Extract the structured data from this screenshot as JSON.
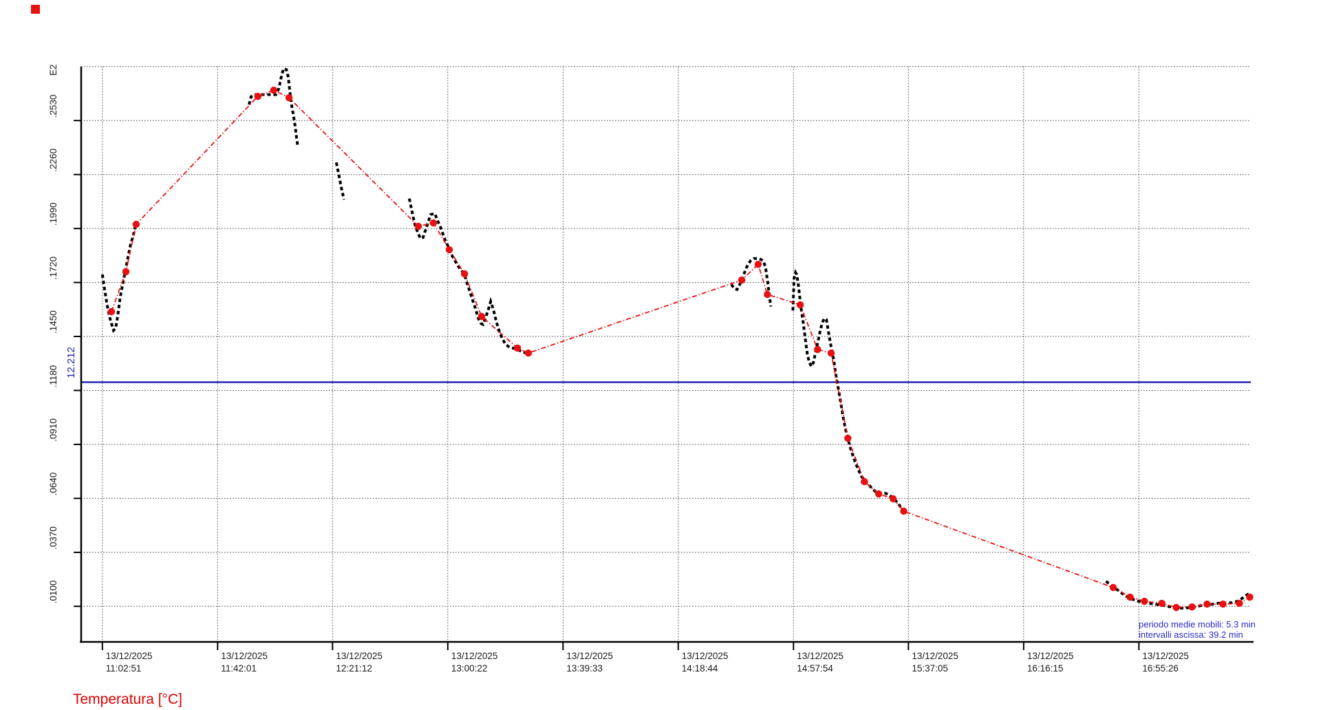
{
  "chart_data": {
    "type": "line",
    "title": "Temperatura [°C]",
    "x_axis_date": "13/12/2025",
    "x_tick_labels": [
      "11:02:51",
      "11:42:01",
      "12:21:12",
      "13:00:22",
      "13:39:33",
      "14:18:44",
      "14:57:54",
      "15:37:05",
      "16:16:15",
      "16:55:26"
    ],
    "x_tick_minutes": [
      0,
      39.2,
      78.3,
      117.5,
      156.7,
      195.9,
      235.1,
      274.2,
      313.4,
      352.6
    ],
    "x_unit": "minutes since 11:02:51",
    "y_exponent_label": "E2",
    "y_tick_labels": [
      ".2530",
      ".2260",
      ".1990",
      ".1720",
      ".1450",
      ".1180",
      ".0910",
      ".0640",
      ".0370",
      ".0100"
    ],
    "y_tick_values": [
      25.3,
      22.6,
      19.9,
      17.2,
      14.5,
      11.8,
      9.1,
      6.4,
      3.7,
      1.0
    ],
    "y_top_gridline_value": 28.0,
    "ylim": [
      -0.78,
      27.96
    ],
    "grid": true,
    "legend_position": "none",
    "reference_line": {
      "label": "12.212",
      "value": 12.212
    },
    "annotations": [
      "periodo medie mobili: 5.3 min",
      "intervalli ascissa: 39.2 min"
    ],
    "colors": {
      "raw_series": "#000000",
      "average_series": "#e81010",
      "reference_line": "#2323b4",
      "title": "#dd0000",
      "annotation": "#2a2ac8",
      "grid": "#3c3c3c",
      "axis": "#000000",
      "legend_marker": "#e81010"
    },
    "series": [
      {
        "name": "temperatura-misurata",
        "style": "dashed-black",
        "segments": [
          [
            [
              0,
              17.6
            ],
            [
              0.7,
              16.9
            ],
            [
              1.7,
              16.0
            ],
            [
              2.6,
              15.4
            ],
            [
              3.8,
              14.8
            ],
            [
              4.5,
              14.9
            ],
            [
              5.2,
              15.5
            ],
            [
              6.1,
              16.5
            ],
            [
              7.3,
              17.4
            ],
            [
              8.5,
              18.3
            ],
            [
              9.6,
              19.1
            ],
            [
              10.6,
              19.6
            ],
            [
              11.3,
              20.1
            ]
          ],
          [
            [
              49.9,
              26.1
            ],
            [
              50.6,
              26.5
            ],
            [
              52.2,
              26.6
            ],
            [
              54.6,
              26.6
            ],
            [
              56.9,
              26.6
            ],
            [
              59.0,
              26.6
            ],
            [
              60.0,
              26.9
            ],
            [
              60.9,
              27.5
            ],
            [
              61.6,
              27.9
            ],
            [
              62.6,
              27.85
            ],
            [
              63.2,
              27.5
            ],
            [
              63.7,
              26.85
            ],
            [
              64.2,
              26.2
            ],
            [
              64.9,
              25.65
            ],
            [
              65.6,
              25.0
            ],
            [
              66.1,
              24.4
            ],
            [
              66.5,
              24.0
            ]
          ],
          [
            [
              79.6,
              23.2
            ],
            [
              80.6,
              22.45
            ],
            [
              81.5,
              21.8
            ],
            [
              82.2,
              21.35
            ]
          ],
          [
            [
              104.4,
              21.4
            ],
            [
              105.4,
              20.7
            ],
            [
              106.3,
              20.1
            ],
            [
              107.3,
              19.7
            ],
            [
              108.2,
              19.4
            ],
            [
              109.1,
              19.45
            ],
            [
              110.1,
              19.9
            ],
            [
              111.0,
              20.3
            ],
            [
              111.7,
              20.6
            ],
            [
              113.1,
              20.65
            ],
            [
              114.0,
              20.3
            ],
            [
              115.2,
              19.9
            ],
            [
              116.4,
              19.4
            ],
            [
              117.6,
              19.0
            ],
            [
              118.7,
              18.6
            ],
            [
              119.9,
              18.3
            ],
            [
              121.1,
              18.0
            ],
            [
              122.2,
              17.8
            ],
            [
              123.2,
              17.6
            ],
            [
              124.1,
              17.15
            ],
            [
              125.0,
              16.75
            ],
            [
              126.0,
              16.3
            ],
            [
              126.9,
              15.9
            ],
            [
              127.9,
              15.4
            ],
            [
              128.8,
              15.15
            ],
            [
              129.5,
              15.1
            ],
            [
              130.4,
              15.45
            ],
            [
              131.4,
              15.9
            ],
            [
              132.1,
              16.25
            ],
            [
              133.0,
              15.85
            ],
            [
              133.9,
              15.3
            ],
            [
              134.9,
              14.8
            ],
            [
              136.0,
              14.4
            ],
            [
              137.2,
              14.1
            ],
            [
              138.6,
              13.95
            ],
            [
              140.3,
              13.9
            ],
            [
              141.9,
              13.8
            ],
            [
              143.5,
              13.7
            ],
            [
              145.2,
              13.65
            ]
          ],
          [
            [
              214.0,
              17.1
            ],
            [
              214.9,
              16.9
            ],
            [
              215.9,
              16.85
            ],
            [
              216.8,
              17.1
            ],
            [
              217.7,
              17.4
            ],
            [
              218.7,
              17.8
            ],
            [
              219.6,
              18.1
            ],
            [
              220.6,
              18.3
            ],
            [
              221.7,
              18.4
            ],
            [
              222.9,
              18.4
            ],
            [
              224.1,
              18.35
            ],
            [
              225.0,
              18.25
            ],
            [
              225.7,
              17.85
            ],
            [
              226.4,
              17.15
            ],
            [
              226.9,
              16.5
            ],
            [
              227.4,
              16.0
            ]
          ],
          [
            [
              234.9,
              15.8
            ],
            [
              235.1,
              16.6
            ],
            [
              235.3,
              17.4
            ],
            [
              235.8,
              17.7
            ],
            [
              236.2,
              17.6
            ],
            [
              236.7,
              17.15
            ],
            [
              237.2,
              16.5
            ],
            [
              237.7,
              15.9
            ],
            [
              238.4,
              15.2
            ],
            [
              239.1,
              14.4
            ],
            [
              239.8,
              13.6
            ],
            [
              240.5,
              13.2
            ],
            [
              241.2,
              13.0
            ],
            [
              241.9,
              13.2
            ],
            [
              242.6,
              13.7
            ],
            [
              243.5,
              14.3
            ],
            [
              244.2,
              14.8
            ],
            [
              244.9,
              15.2
            ],
            [
              245.6,
              15.4
            ],
            [
              246.3,
              15.35
            ],
            [
              246.8,
              14.9
            ],
            [
              247.5,
              14.3
            ],
            [
              248.0,
              13.9
            ],
            [
              248.7,
              13.4
            ],
            [
              249.4,
              12.7
            ],
            [
              250.1,
              12.1
            ],
            [
              250.8,
              11.5
            ],
            [
              251.5,
              10.9
            ],
            [
              252.2,
              10.3
            ],
            [
              252.9,
              9.8
            ],
            [
              253.6,
              9.4
            ],
            [
              254.5,
              8.9
            ],
            [
              255.4,
              8.5
            ],
            [
              256.4,
              8.1
            ],
            [
              257.3,
              7.8
            ],
            [
              258.2,
              7.5
            ],
            [
              259.4,
              7.3
            ],
            [
              260.6,
              7.1
            ],
            [
              261.8,
              6.9
            ],
            [
              262.9,
              6.75
            ],
            [
              264.1,
              6.65
            ],
            [
              265.3,
              6.6
            ],
            [
              266.4,
              6.65
            ],
            [
              267.4,
              6.6
            ],
            [
              268.3,
              6.5
            ],
            [
              269.5,
              6.35
            ],
            [
              270.7,
              6.15
            ],
            [
              271.6,
              5.95
            ],
            [
              272.6,
              5.75
            ]
          ],
          [
            [
              341.4,
              2.25
            ],
            [
              342.8,
              2.1
            ],
            [
              344.4,
              1.9
            ],
            [
              346.1,
              1.75
            ],
            [
              347.7,
              1.55
            ],
            [
              349.6,
              1.4
            ],
            [
              351.5,
              1.3
            ],
            [
              353.8,
              1.2
            ],
            [
              356.2,
              1.15
            ],
            [
              358.5,
              1.1
            ],
            [
              360.8,
              1.05
            ],
            [
              363.2,
              0.98
            ],
            [
              365.5,
              0.94
            ],
            [
              367.8,
              0.9
            ],
            [
              370.2,
              0.94
            ],
            [
              372.5,
              1.0
            ],
            [
              374.9,
              1.08
            ],
            [
              377.2,
              1.1
            ],
            [
              379.6,
              1.15
            ],
            [
              381.9,
              1.15
            ],
            [
              384.2,
              1.18
            ],
            [
              386.1,
              1.25
            ],
            [
              387.7,
              1.4
            ],
            [
              389.1,
              1.55
            ],
            [
              390.3,
              1.65
            ]
          ]
        ]
      },
      {
        "name": "media-mobile-5.3-min",
        "style": "red-dot-dash",
        "points": [
          [
            3.1,
            15.74
          ],
          [
            8.0,
            17.74
          ],
          [
            11.5,
            20.11
          ],
          [
            52.9,
            26.51
          ],
          [
            58.3,
            26.82
          ],
          [
            63.5,
            26.44
          ],
          [
            107.5,
            20.01
          ],
          [
            112.6,
            20.18
          ],
          [
            118.0,
            18.84
          ],
          [
            123.2,
            17.63
          ],
          [
            129.0,
            15.5
          ],
          [
            141.2,
            13.92
          ],
          [
            144.9,
            13.67
          ],
          [
            217.5,
            17.32
          ],
          [
            223.1,
            18.11
          ],
          [
            226.2,
            16.6
          ],
          [
            237.4,
            16.08
          ],
          [
            243.3,
            13.85
          ],
          [
            247.9,
            13.67
          ],
          [
            253.6,
            9.41
          ],
          [
            259.2,
            7.24
          ],
          [
            264.1,
            6.62
          ],
          [
            269.0,
            6.38
          ],
          [
            272.6,
            5.76
          ],
          [
            343.9,
            1.94
          ],
          [
            349.6,
            1.46
          ],
          [
            354.5,
            1.25
          ],
          [
            360.4,
            1.15
          ],
          [
            365.3,
            0.94
          ],
          [
            370.7,
            0.97
          ],
          [
            375.8,
            1.11
          ],
          [
            381.2,
            1.11
          ],
          [
            386.8,
            1.15
          ],
          [
            390.3,
            1.46
          ]
        ]
      }
    ]
  }
}
